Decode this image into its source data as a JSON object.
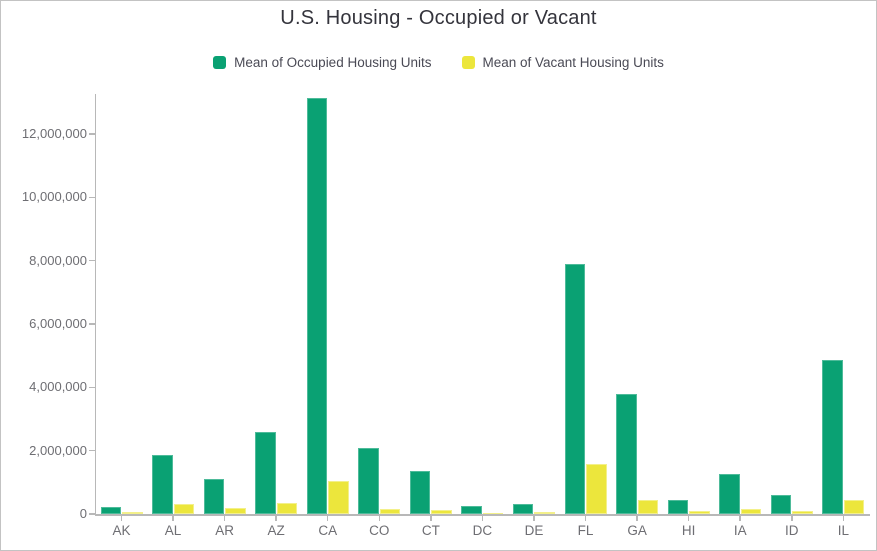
{
  "chart_data": {
    "type": "bar",
    "title": "U.S. Housing - Occupied or Vacant",
    "categories": [
      "AK",
      "AL",
      "AR",
      "AZ",
      "CA",
      "CO",
      "CT",
      "DC",
      "DE",
      "FL",
      "GA",
      "HI",
      "IA",
      "ID",
      "IL"
    ],
    "series": [
      {
        "name": "Mean of Occupied Housing Units",
        "color": "#0aa173",
        "values": [
          220000,
          1850000,
          1100000,
          2600000,
          13150000,
          2100000,
          1350000,
          250000,
          310000,
          7900000,
          3800000,
          430000,
          1250000,
          600000,
          4850000
        ]
      },
      {
        "name": "Mean of Vacant Housing Units",
        "color": "#ece63c",
        "values": [
          55000,
          330000,
          180000,
          350000,
          1050000,
          170000,
          120000,
          30000,
          60000,
          1570000,
          450000,
          90000,
          150000,
          90000,
          440000
        ]
      }
    ],
    "xlabel": "",
    "ylabel": "",
    "ylim": [
      0,
      13200000
    ],
    "yticks": [
      0,
      2000000,
      4000000,
      6000000,
      8000000,
      10000000,
      12000000
    ],
    "ytick_labels": [
      "0",
      "2,000,000",
      "4,000,000",
      "6,000,000",
      "8,000,000",
      "10,000,000",
      "12,000,000"
    ],
    "grid": false,
    "legend_position": "top-center"
  },
  "colors": {
    "axis": "#b8b8b8",
    "axis_text": "#6e6e73",
    "title_text": "#34343c",
    "legend_text": "#4a4a55",
    "background": "#ffffff",
    "frame_border": "#c3c3c3"
  }
}
